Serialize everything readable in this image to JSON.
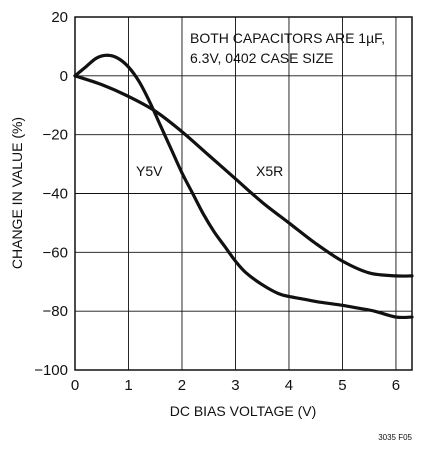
{
  "chart_data": {
    "type": "line",
    "title": "",
    "xlabel": "DC BIAS VOLTAGE (V)",
    "ylabel": "CHANGE IN VALUE (%)",
    "xlim": [
      0,
      6.3
    ],
    "ylim": [
      -100,
      20
    ],
    "x_ticks": [
      0,
      1,
      2,
      3,
      4,
      5,
      6
    ],
    "y_ticks": [
      20,
      0,
      -20,
      -40,
      -60,
      -80,
      -100
    ],
    "x_tick_labels": [
      "0",
      "1",
      "2",
      "3",
      "4",
      "5",
      "6"
    ],
    "y_tick_labels": [
      "20",
      "0",
      "−20",
      "−40",
      "−60",
      "−80",
      "−100"
    ],
    "grid": true,
    "legend": "none",
    "annotations": {
      "note_line1": "BOTH CAPACITORS ARE 1µF,",
      "note_line2": "6.3V, 0402 CASE SIZE",
      "y5v_label": "Y5V",
      "x5r_label": "X5R",
      "figure_id": "3035 F05"
    },
    "series": [
      {
        "name": "Y5V",
        "x": [
          0,
          0.2,
          0.4,
          0.6,
          0.8,
          1.0,
          1.2,
          1.4,
          1.6,
          1.8,
          2.0,
          2.2,
          2.4,
          2.6,
          2.8,
          3.0,
          3.2,
          3.5,
          3.8,
          4.0,
          4.3,
          4.6,
          5.0,
          5.3,
          5.6,
          6.0,
          6.3
        ],
        "y": [
          0,
          3,
          6,
          7,
          6,
          3,
          -2,
          -9,
          -17,
          -25,
          -33,
          -40,
          -47,
          -53,
          -58,
          -63,
          -67,
          -71,
          -74,
          -75,
          -76,
          -77,
          -78,
          -79,
          -80,
          -82,
          -82
        ]
      },
      {
        "name": "X5R",
        "x": [
          0,
          0.5,
          1.0,
          1.5,
          2.0,
          2.5,
          3.0,
          3.5,
          4.0,
          4.5,
          5.0,
          5.5,
          6.0,
          6.3
        ],
        "y": [
          0,
          -3,
          -7,
          -12,
          -19,
          -27,
          -35,
          -43,
          -50,
          -57,
          -63,
          -67,
          -68,
          -68
        ]
      }
    ],
    "colors": {
      "background": "#ffffff",
      "frame": "#111111",
      "grid": "#111111",
      "series": "#111111"
    }
  }
}
